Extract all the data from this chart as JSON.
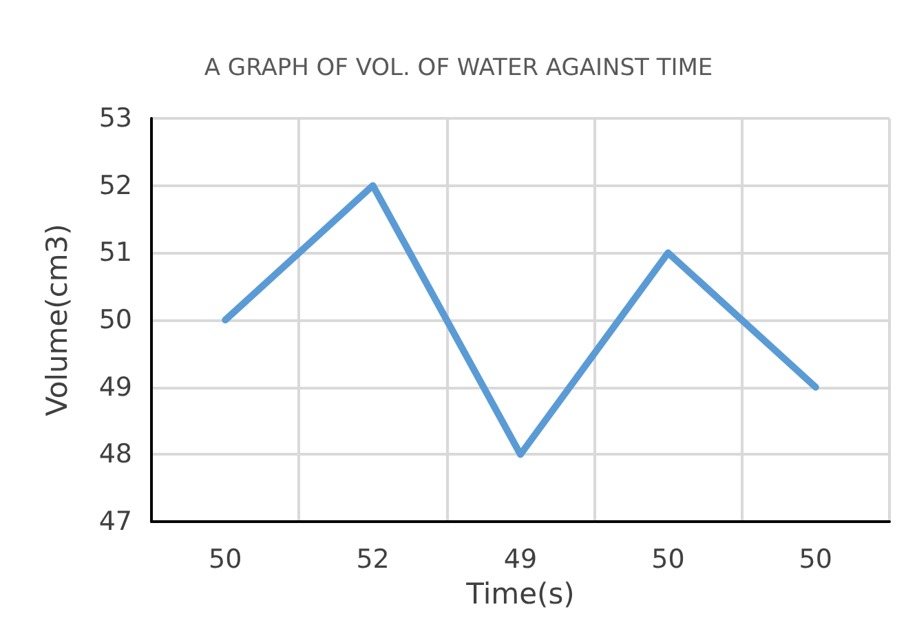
{
  "chart_data": {
    "type": "line",
    "title": "A GRAPH OF VOL. OF WATER AGAINST TIME",
    "xlabel": "Time(s)",
    "ylabel": "Volume(cm3)",
    "categories": [
      "50",
      "52",
      "49",
      "50",
      "50"
    ],
    "series": [
      {
        "color": "#5b9bd5",
        "values": [
          50,
          52,
          48,
          51,
          49
        ]
      }
    ],
    "ylim": [
      47,
      53
    ],
    "yticks": [
      47,
      48,
      49,
      50,
      51,
      52,
      53
    ],
    "grid": true,
    "marker": "none",
    "line_style": "solid"
  }
}
